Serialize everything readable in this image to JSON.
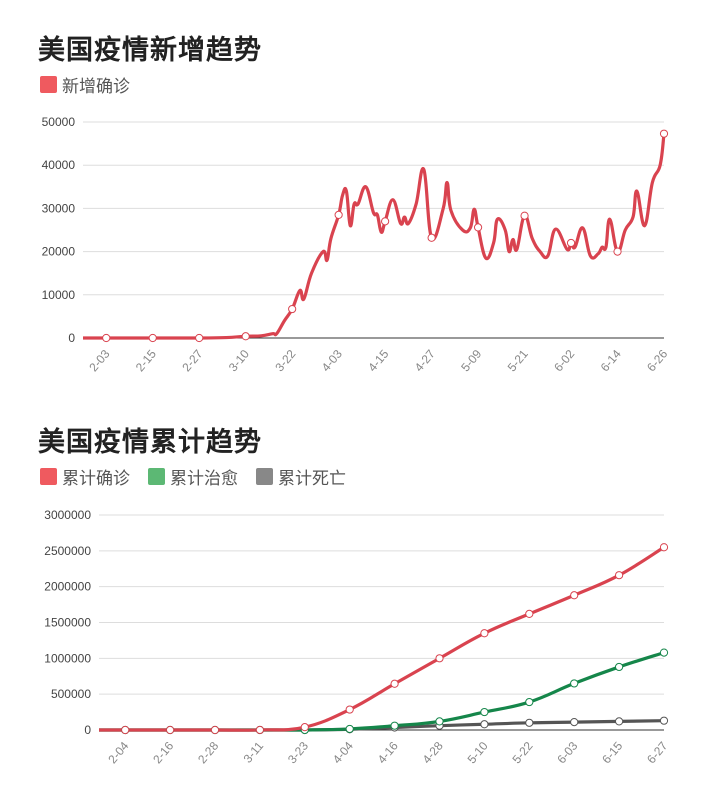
{
  "chart_data": [
    {
      "type": "line",
      "title": "美国疫情新增趋势",
      "legend": [
        {
          "name": "新增确诊",
          "color": "#ef5a5f"
        }
      ],
      "ylim": [
        0,
        50000
      ],
      "yticks": [
        "0",
        "10000",
        "20000",
        "30000",
        "40000",
        "50000"
      ],
      "x_range": [
        "1-28",
        "6-26"
      ],
      "xticks": [
        "2-03",
        "2-15",
        "2-27",
        "3-10",
        "3-22",
        "4-03",
        "4-15",
        "4-27",
        "5-09",
        "5-21",
        "6-02",
        "6-14",
        "6-26"
      ],
      "grid": true,
      "series": [
        {
          "name": "新增确诊",
          "color": "#d9434f",
          "points": [
            [
              "1-28",
              0
            ],
            [
              "2-03",
              0
            ],
            [
              "2-15",
              0
            ],
            [
              "2-27",
              0
            ],
            [
              "3-05",
              100
            ],
            [
              "3-10",
              400
            ],
            [
              "3-14",
              500
            ],
            [
              "3-17",
              1000
            ],
            [
              "3-18",
              1000
            ],
            [
              "3-20",
              4000
            ],
            [
              "3-22",
              6700
            ],
            [
              "3-24",
              11000
            ],
            [
              "3-25",
              9000
            ],
            [
              "3-27",
              15000
            ],
            [
              "3-30",
              20000
            ],
            [
              "3-31",
              18000
            ],
            [
              "4-01",
              23000
            ],
            [
              "4-03",
              28500
            ],
            [
              "4-04",
              33000
            ],
            [
              "4-05",
              34000
            ],
            [
              "4-06",
              26000
            ],
            [
              "4-07",
              31000
            ],
            [
              "4-08",
              31000
            ],
            [
              "4-10",
              35000
            ],
            [
              "4-12",
              29000
            ],
            [
              "4-13",
              28500
            ],
            [
              "4-14",
              24500
            ],
            [
              "4-15",
              27000
            ],
            [
              "4-17",
              32000
            ],
            [
              "4-19",
              26500
            ],
            [
              "4-20",
              28000
            ],
            [
              "4-21",
              26500
            ],
            [
              "4-23",
              31000
            ],
            [
              "4-25",
              39000
            ],
            [
              "4-27",
              23200
            ],
            [
              "4-30",
              30000
            ],
            [
              "5-01",
              36000
            ],
            [
              "5-02",
              29500
            ],
            [
              "5-05",
              25000
            ],
            [
              "5-07",
              25500
            ],
            [
              "5-08",
              29800
            ],
            [
              "5-09",
              25600
            ],
            [
              "5-11",
              18500
            ],
            [
              "5-13",
              22000
            ],
            [
              "5-14",
              27500
            ],
            [
              "5-16",
              25000
            ],
            [
              "5-17",
              20000
            ],
            [
              "5-18",
              22800
            ],
            [
              "5-19",
              20500
            ],
            [
              "5-21",
              28300
            ],
            [
              "5-23",
              23000
            ],
            [
              "5-25",
              20000
            ],
            [
              "5-27",
              19000
            ],
            [
              "5-29",
              25200
            ],
            [
              "6-01",
              20500
            ],
            [
              "6-02",
              22000
            ],
            [
              "6-03",
              21000
            ],
            [
              "6-05",
              25500
            ],
            [
              "6-07",
              19000
            ],
            [
              "6-09",
              19500
            ],
            [
              "6-10",
              21000
            ],
            [
              "6-11",
              21000
            ],
            [
              "6-12",
              27500
            ],
            [
              "6-14",
              20000
            ],
            [
              "6-16",
              25000
            ],
            [
              "6-18",
              28000
            ],
            [
              "6-19",
              34000
            ],
            [
              "6-21",
              26000
            ],
            [
              "6-23",
              36000
            ],
            [
              "6-25",
              40000
            ],
            [
              "6-26",
              47300
            ]
          ]
        }
      ]
    },
    {
      "type": "line",
      "title": "美国疫情累计趋势",
      "legend": [
        {
          "name": "累计确诊",
          "color": "#ef5a5f"
        },
        {
          "name": "累计治愈",
          "color": "#5cb874"
        },
        {
          "name": "累计死亡",
          "color": "#888888"
        }
      ],
      "ylim": [
        0,
        3000000
      ],
      "yticks": [
        "0",
        "500000",
        "1000000",
        "1500000",
        "2000000",
        "2500000",
        "3000000"
      ],
      "x_range": [
        "1-28",
        "6-27"
      ],
      "xticks": [
        "2-04",
        "2-16",
        "2-28",
        "3-11",
        "3-23",
        "4-04",
        "4-16",
        "4-28",
        "5-10",
        "5-22",
        "6-03",
        "6-15",
        "6-27"
      ],
      "grid": true,
      "series": [
        {
          "name": "累计确诊",
          "color": "#d9434f",
          "points": [
            [
              "1-28",
              0
            ],
            [
              "2-04",
              0
            ],
            [
              "2-16",
              0
            ],
            [
              "2-28",
              0
            ],
            [
              "3-11",
              1000
            ],
            [
              "3-23",
              40000
            ],
            [
              "4-04",
              285000
            ],
            [
              "4-16",
              645000
            ],
            [
              "4-28",
              1000000
            ],
            [
              "5-10",
              1350000
            ],
            [
              "5-22",
              1620000
            ],
            [
              "6-03",
              1880000
            ],
            [
              "6-15",
              2160000
            ],
            [
              "6-27",
              2550000
            ]
          ]
        },
        {
          "name": "累计治愈",
          "color": "#15864a",
          "points": [
            [
              "1-28",
              0
            ],
            [
              "2-04",
              0
            ],
            [
              "2-16",
              0
            ],
            [
              "2-28",
              0
            ],
            [
              "3-11",
              0
            ],
            [
              "3-23",
              500
            ],
            [
              "4-04",
              15000
            ],
            [
              "4-16",
              60000
            ],
            [
              "4-28",
              120000
            ],
            [
              "5-10",
              250000
            ],
            [
              "5-22",
              390000
            ],
            [
              "6-03",
              650000
            ],
            [
              "6-15",
              880000
            ],
            [
              "6-27",
              1080000
            ]
          ]
        },
        {
          "name": "累计死亡",
          "color": "#555555",
          "points": [
            [
              "1-28",
              0
            ],
            [
              "2-04",
              0
            ],
            [
              "2-16",
              0
            ],
            [
              "2-28",
              0
            ],
            [
              "3-11",
              0
            ],
            [
              "3-23",
              500
            ],
            [
              "4-04",
              10000
            ],
            [
              "4-16",
              35000
            ],
            [
              "4-28",
              60000
            ],
            [
              "5-10",
              80000
            ],
            [
              "5-22",
              100000
            ],
            [
              "6-03",
              110000
            ],
            [
              "6-15",
              120000
            ],
            [
              "6-27",
              130000
            ]
          ]
        }
      ]
    }
  ]
}
